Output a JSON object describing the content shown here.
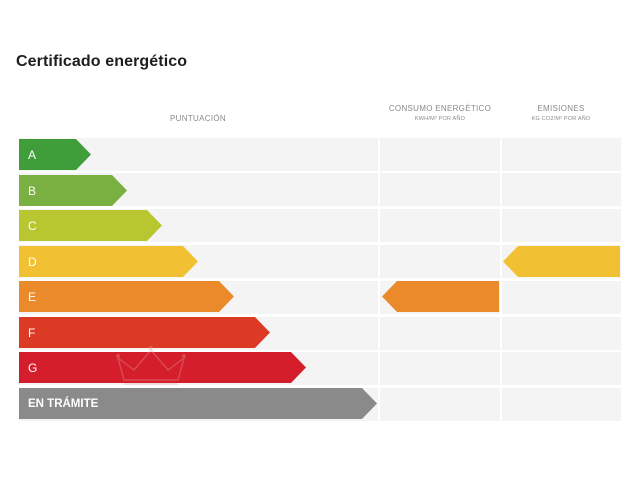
{
  "title": "Certificado energético",
  "columns": {
    "score": "PUNTUACIÓN",
    "consumption": {
      "label": "CONSUMO ENERGÉTICO",
      "unit": "KWH/M² POR AÑO"
    },
    "emissions": {
      "label": "EMISIONES",
      "unit": "KG CO2/M² POR AÑO"
    }
  },
  "ratings": [
    {
      "label": "A",
      "color": "#3f9d3a"
    },
    {
      "label": "B",
      "color": "#7ab042"
    },
    {
      "label": "C",
      "color": "#b8c72f"
    },
    {
      "label": "D",
      "color": "#f2c133"
    },
    {
      "label": "E",
      "color": "#ea8a2a"
    },
    {
      "label": "F",
      "color": "#dc3a24"
    },
    {
      "label": "G",
      "color": "#d41e2c"
    },
    {
      "label": "EN TRÁMITE",
      "color": "#8a8a8a"
    }
  ],
  "consumption_rating": {
    "rating": "E",
    "color": "#ea8a2a"
  },
  "emissions_rating": {
    "rating": "D",
    "color": "#f2c133"
  }
}
